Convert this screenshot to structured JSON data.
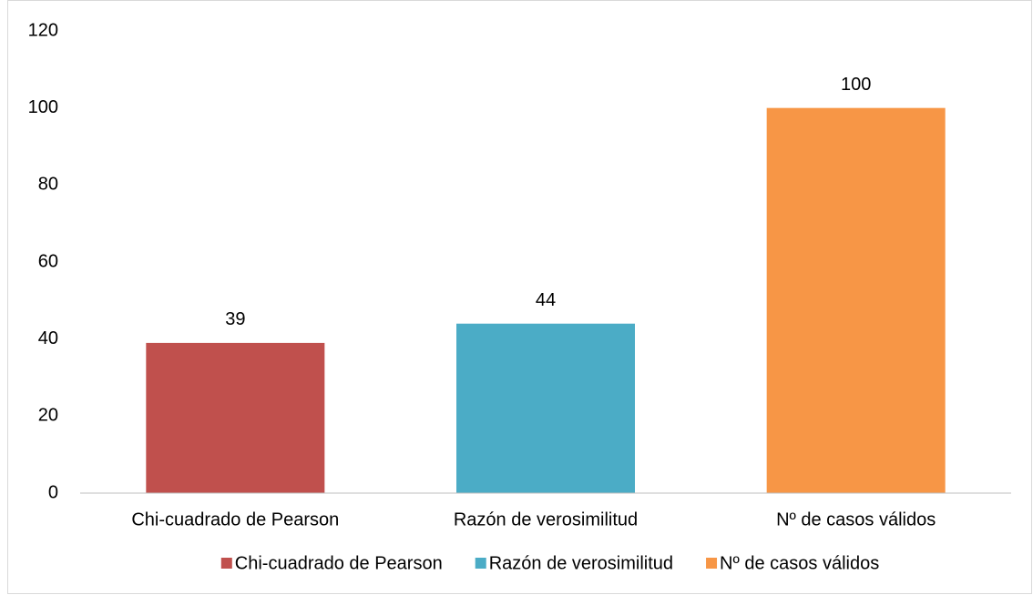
{
  "chart_data": {
    "type": "bar",
    "categories": [
      "Chi-cuadrado de Pearson",
      "Razón de verosimilitud",
      "Nº de casos válidos"
    ],
    "values": [
      39,
      44,
      100
    ],
    "colors": [
      "#c0504d",
      "#4bacc6",
      "#f79646"
    ],
    "ylim": [
      0,
      120
    ],
    "yticks": [
      0,
      20,
      40,
      60,
      80,
      100,
      120
    ],
    "grid": false,
    "legend": "bottom"
  }
}
